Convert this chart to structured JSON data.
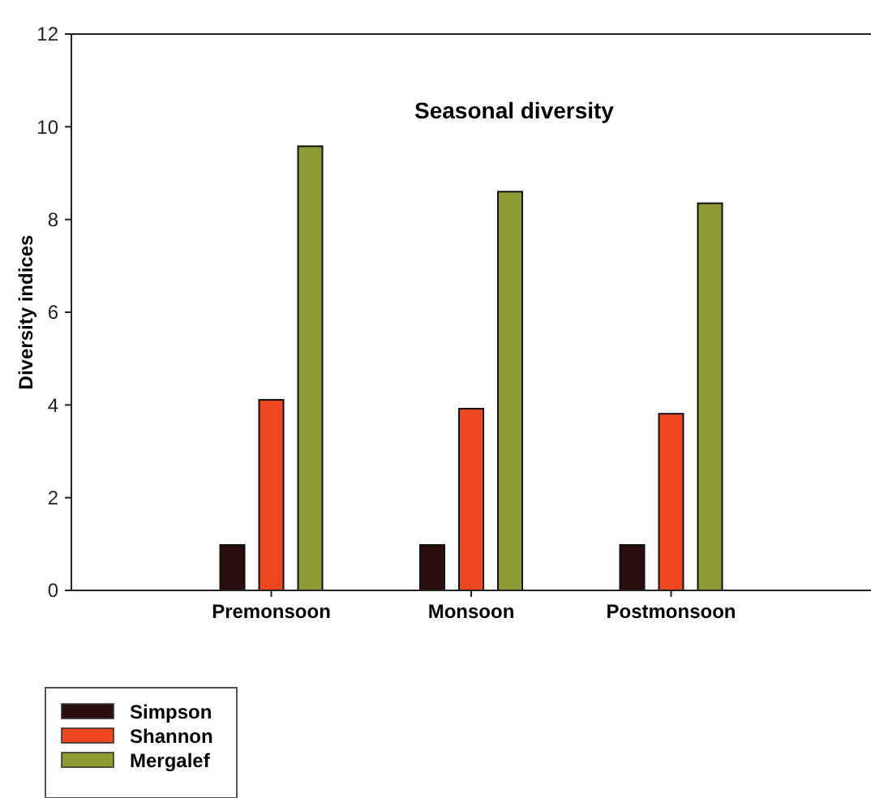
{
  "chart_data": {
    "type": "bar",
    "title": "Seasonal diversity",
    "ylabel": "Diversity indices",
    "categories": [
      "Premonsoon",
      "Monsoon",
      "Postmonsoon"
    ],
    "series": [
      {
        "name": "Simpson",
        "color": "#2a0d0d",
        "values": [
          0.98,
          0.98,
          0.98
        ]
      },
      {
        "name": "Shannon",
        "color": "#ee4720",
        "values": [
          4.11,
          3.92,
          3.81
        ]
      },
      {
        "name": "Mergalef",
        "color": "#8f9a35",
        "values": [
          9.58,
          8.6,
          8.35
        ]
      }
    ],
    "ylim": [
      0,
      12
    ],
    "yticks": [
      0,
      2,
      4,
      6,
      8,
      10,
      12
    ],
    "grid": false,
    "legend": "bottom left"
  }
}
